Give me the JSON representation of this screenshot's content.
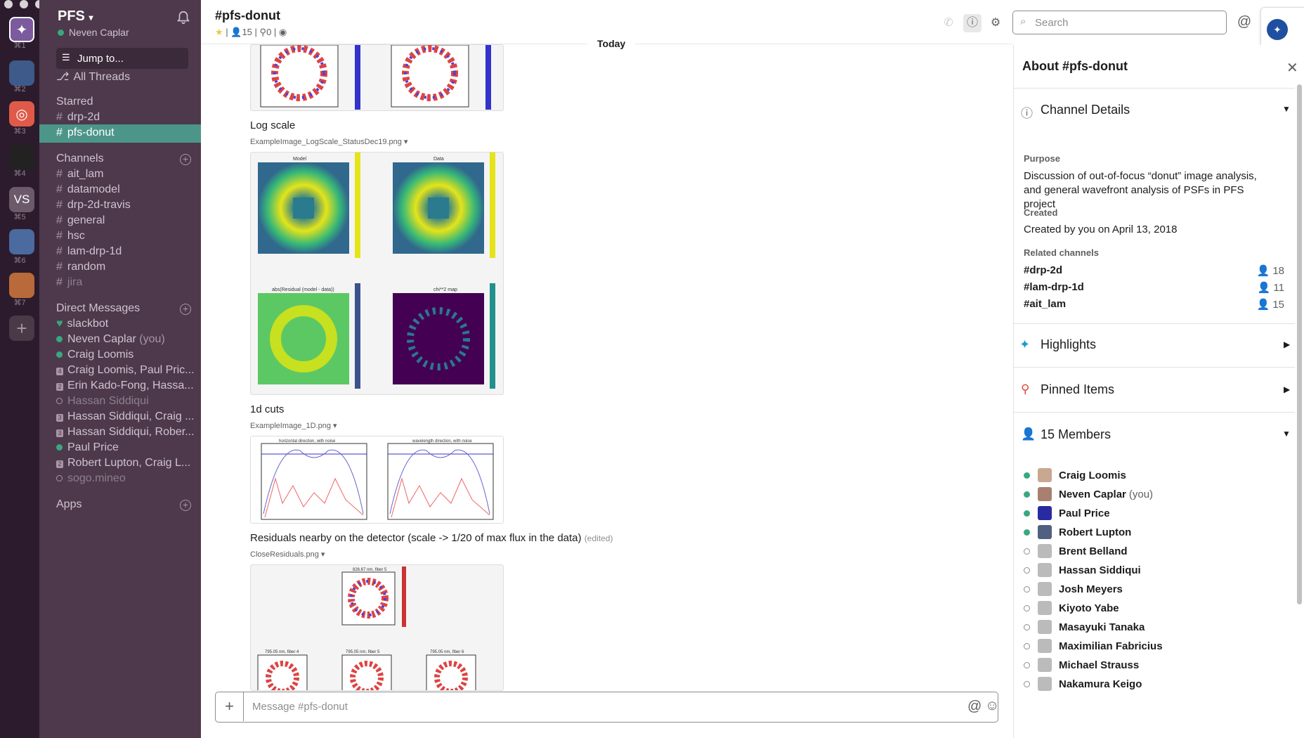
{
  "teams": {
    "shortcuts": [
      "⌘1",
      "⌘2",
      "⌘3",
      "⌘4",
      "⌘5",
      "⌘6",
      "⌘7"
    ],
    "vs_label": "VS"
  },
  "sidebar": {
    "workspace": "PFS",
    "user": "Neven Caplar",
    "jump": "Jump to...",
    "all_threads": "All Threads",
    "starred_title": "Starred",
    "starred": [
      "drp-2d",
      "pfs-donut"
    ],
    "channels_title": "Channels",
    "channels": [
      "ait_lam",
      "datamodel",
      "drp-2d-travis",
      "general",
      "hsc",
      "lam-drp-1d",
      "random",
      "jira"
    ],
    "dm_title": "Direct Messages",
    "dms": [
      {
        "name": "slackbot",
        "status": "heart"
      },
      {
        "name": "Neven Caplar",
        "suffix": "(you)",
        "status": "on"
      },
      {
        "name": "Craig Loomis",
        "status": "on"
      },
      {
        "name": "Craig Loomis, Paul Pric...",
        "status": "4"
      },
      {
        "name": "Erin Kado-Fong, Hassa...",
        "status": "2"
      },
      {
        "name": "Hassan Siddiqui",
        "status": "off"
      },
      {
        "name": "Hassan Siddiqui, Craig ...",
        "status": "3"
      },
      {
        "name": "Hassan Siddiqui, Rober...",
        "status": "3"
      },
      {
        "name": "Paul Price",
        "status": "on"
      },
      {
        "name": "Robert Lupton, Craig L...",
        "status": "2"
      },
      {
        "name": "sogo.mineo",
        "status": "off"
      }
    ],
    "apps_title": "Apps"
  },
  "header": {
    "channel": "#pfs-donut",
    "members": "15",
    "pins": "0",
    "search_placeholder": "Search"
  },
  "messages": {
    "today": "Today",
    "items": [
      {
        "caption": "Log scale",
        "file": "ExampleImage_LogScale_StatusDec19.png"
      },
      {
        "caption": "1d cuts",
        "file": "ExampleImage_1D.png"
      },
      {
        "caption": "Residuals nearby on the detector (scale -> 1/20 of max flux in the data)",
        "edited": "(edited)",
        "file": "CloseResiduals.png"
      }
    ],
    "plot_titles": [
      "Model",
      "Data",
      "abs(Residual (model - data))",
      "chi**2 map",
      "horizontal direction, with noise",
      "wavelength direction, with noise",
      "826.67 nm, fiber 5",
      "795.05 nm, fiber 4",
      "795.05 nm, fiber 5",
      "795.05 nm, fiber 6"
    ],
    "composer_placeholder": "Message #pfs-donut"
  },
  "about": {
    "title": "About #pfs-donut",
    "details_title": "Channel Details",
    "purpose_label": "Purpose",
    "purpose": "Discussion of out-of-focus “donut” image analysis, and general wavefront analysis of PSFs in PFS project",
    "created_label": "Created",
    "created": "Created by you on April 13, 2018",
    "related_label": "Related channels",
    "related": [
      {
        "name": "#drp-2d",
        "count": "18"
      },
      {
        "name": "#lam-drp-1d",
        "count": "11"
      },
      {
        "name": "#ait_lam",
        "count": "15"
      }
    ],
    "highlights": "Highlights",
    "pinned": "Pinned Items",
    "members_title": "15 Members",
    "members": [
      {
        "name": "Craig Loomis",
        "online": true
      },
      {
        "name": "Neven Caplar",
        "you": "(you)",
        "online": true
      },
      {
        "name": "Paul Price",
        "online": true
      },
      {
        "name": "Robert Lupton",
        "online": true
      },
      {
        "name": "Brent Belland",
        "online": false
      },
      {
        "name": "Hassan Siddiqui",
        "online": false
      },
      {
        "name": "Josh Meyers",
        "online": false
      },
      {
        "name": "Kiyoto Yabe",
        "online": false
      },
      {
        "name": "Masayuki Tanaka",
        "online": false
      },
      {
        "name": "Maximilian Fabricius",
        "online": false
      },
      {
        "name": "Michael Strauss",
        "online": false
      },
      {
        "name": "Nakamura Keigo",
        "online": false
      }
    ]
  },
  "colors": {
    "sidebar": "#4d394b",
    "active": "#4c9689",
    "online": "#39a780"
  }
}
